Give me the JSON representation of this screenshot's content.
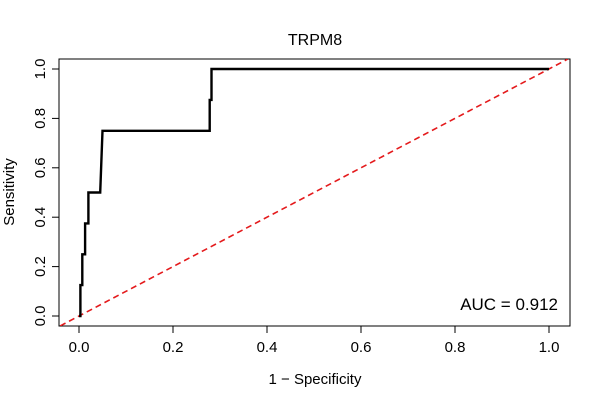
{
  "chart_data": {
    "type": "line",
    "title": "TRPM8",
    "xlabel": "1 − Specificity",
    "ylabel": "Sensitivity",
    "xlim": [
      0.0,
      1.0
    ],
    "ylim": [
      0.0,
      1.0
    ],
    "xticks": [
      "0.0",
      "0.2",
      "0.4",
      "0.6",
      "0.8",
      "1.0"
    ],
    "yticks": [
      "0.0",
      "0.2",
      "0.4",
      "0.6",
      "0.8",
      "1.0"
    ],
    "grid": false,
    "annotation": "AUC = 0.912",
    "series": [
      {
        "color": "#000000",
        "style": "solid",
        "points": [
          [
            0.0,
            0.0
          ],
          [
            0.003,
            0.0
          ],
          [
            0.003,
            0.125
          ],
          [
            0.007,
            0.125
          ],
          [
            0.007,
            0.25
          ],
          [
            0.013,
            0.25
          ],
          [
            0.013,
            0.375
          ],
          [
            0.02,
            0.375
          ],
          [
            0.02,
            0.5
          ],
          [
            0.045,
            0.5
          ],
          [
            0.05,
            0.75
          ],
          [
            0.278,
            0.75
          ],
          [
            0.278,
            0.875
          ],
          [
            0.282,
            0.875
          ],
          [
            0.282,
            1.0
          ],
          [
            1.0,
            1.0
          ]
        ]
      },
      {
        "color": "#e41a1c",
        "style": "dashed",
        "points": [
          [
            -0.04,
            -0.04
          ],
          [
            1.04,
            1.04
          ]
        ]
      }
    ]
  }
}
